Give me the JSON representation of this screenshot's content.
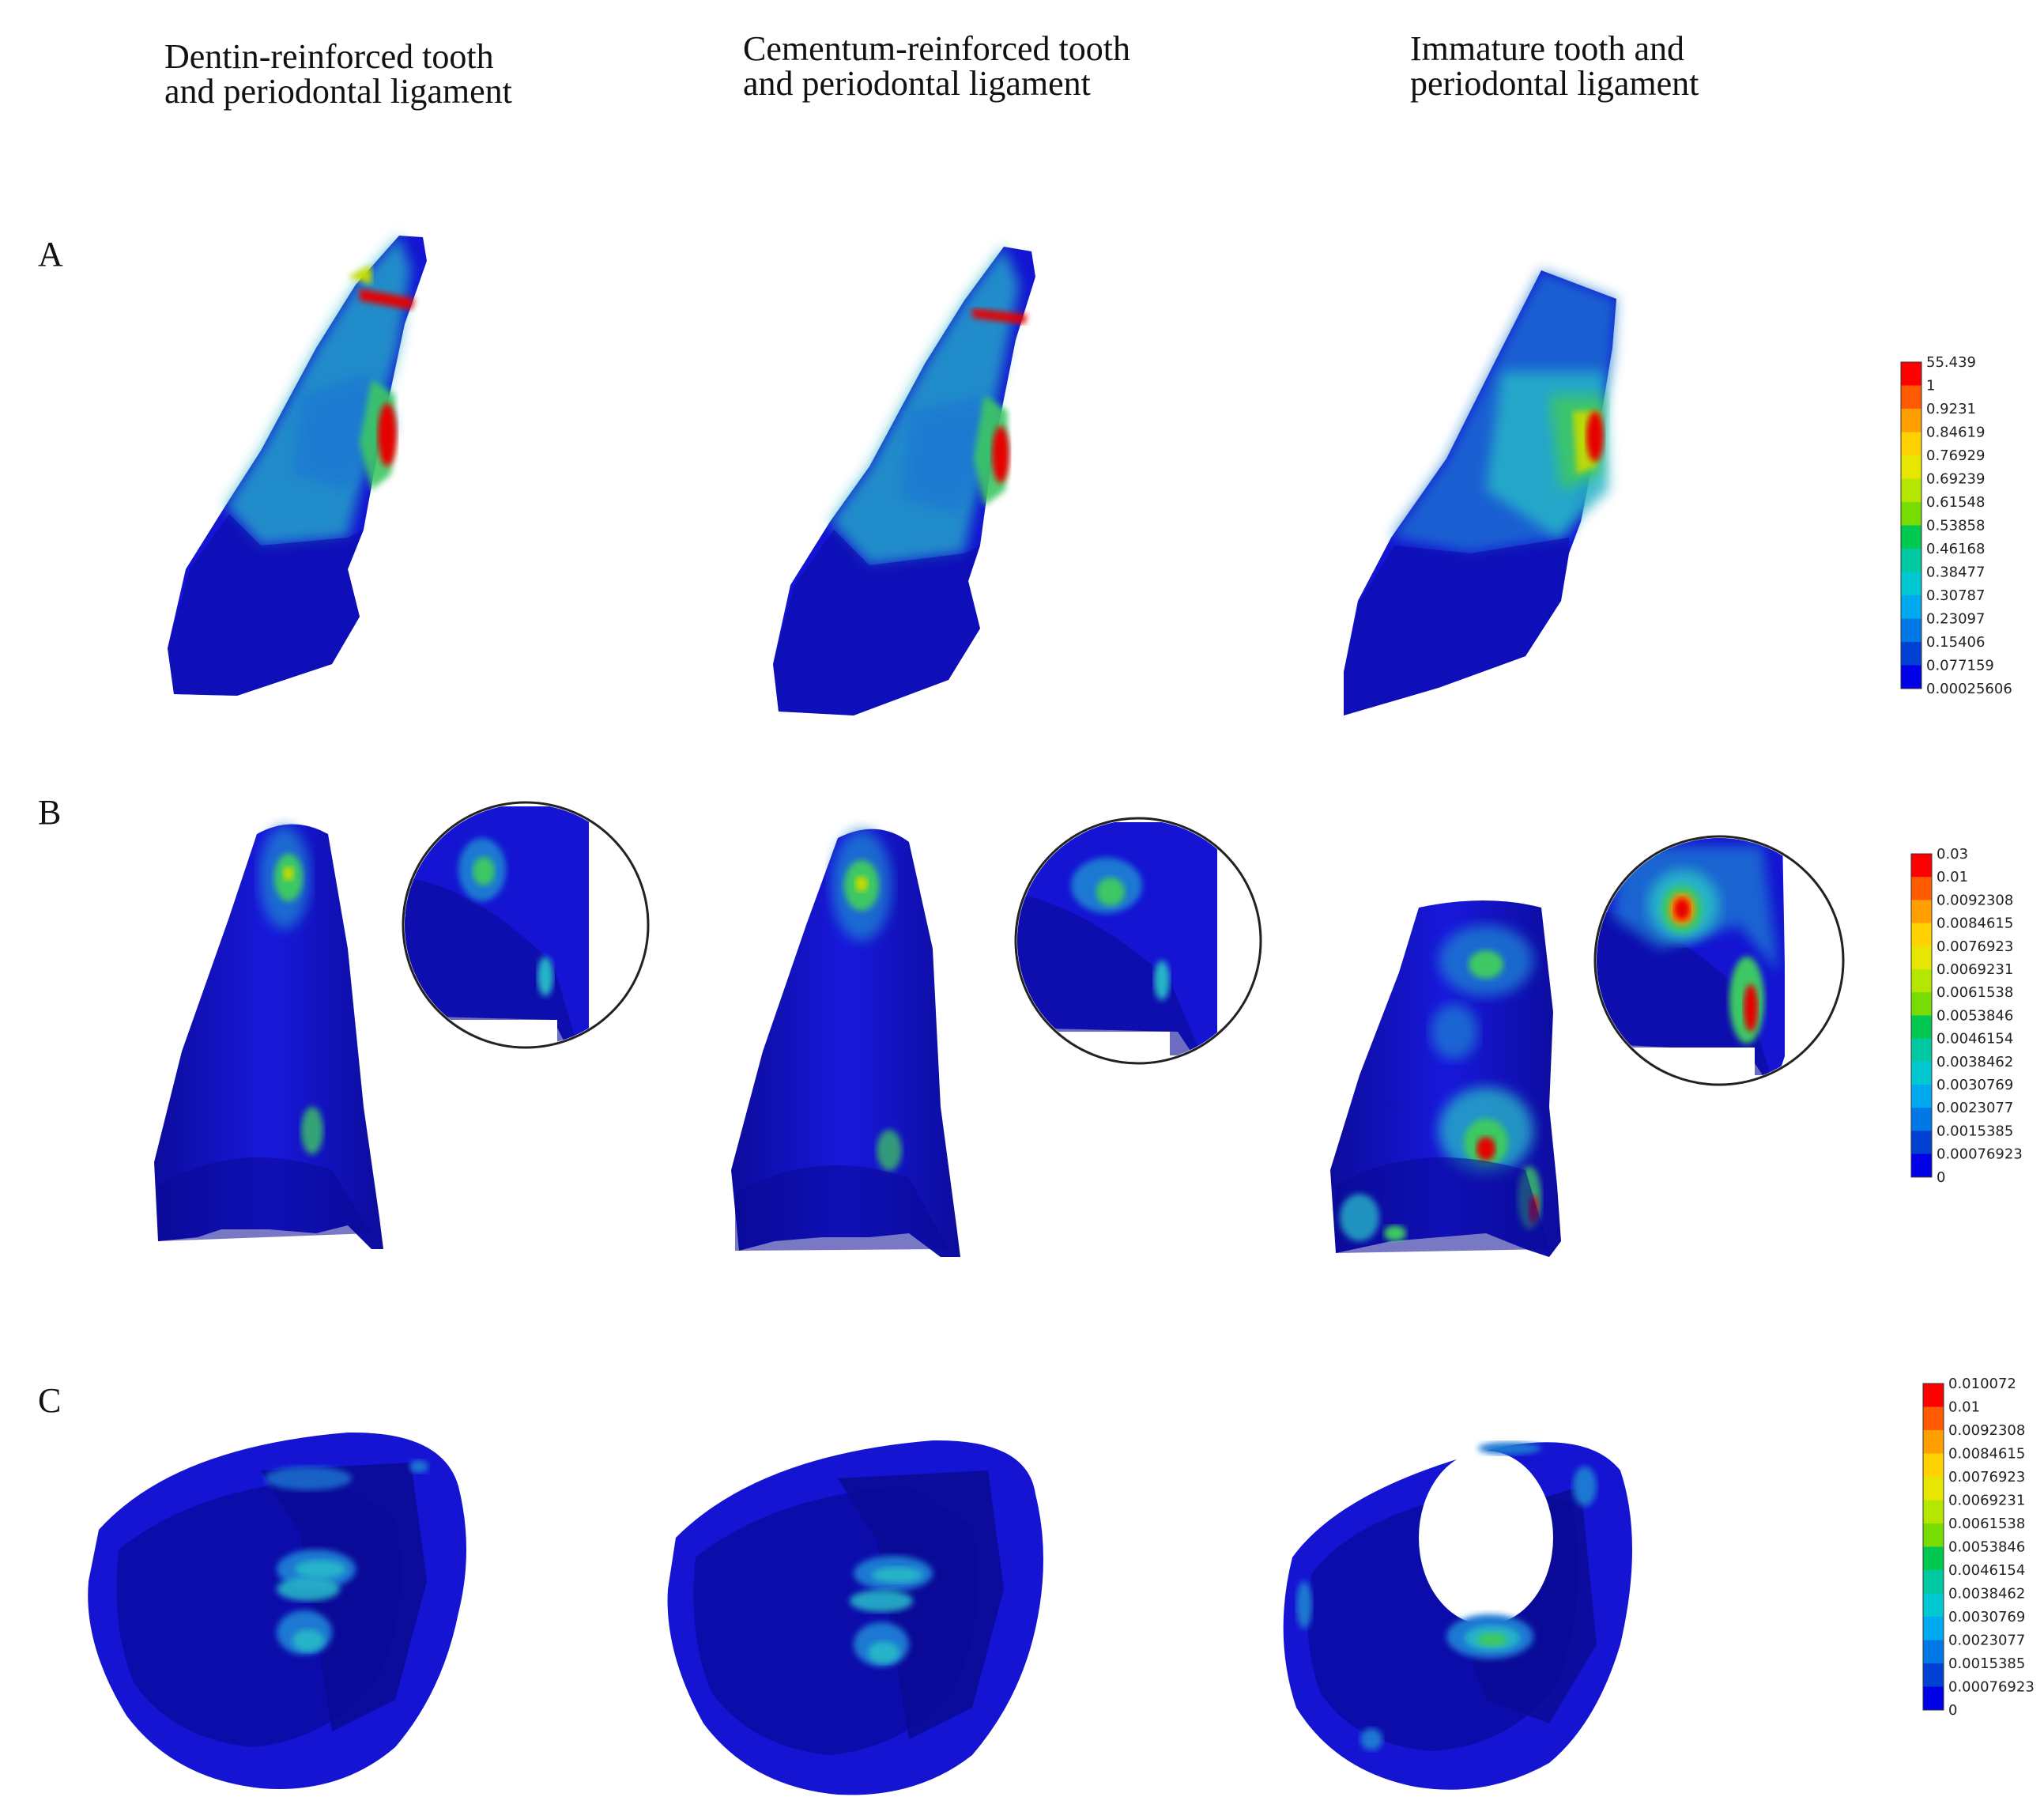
{
  "columns": [
    {
      "line1": "Dentin-reinforced tooth",
      "line2": "and periodontal ligament"
    },
    {
      "line1": "Cementum-reinforced tooth",
      "line2": "and periodontal ligament"
    },
    {
      "line1": "Immature tooth and",
      "line2": "periodontal ligament"
    }
  ],
  "rows": [
    {
      "label": "A"
    },
    {
      "label": "B"
    },
    {
      "label": "C"
    }
  ],
  "legends": [
    {
      "labels": [
        "55.439",
        "1",
        "0.9231",
        "0.84619",
        "0.76929",
        "0.69239",
        "0.61548",
        "0.53858",
        "0.46168",
        "0.38477",
        "0.30787",
        "0.23097",
        "0.15406",
        "0.077159",
        "0.00025606"
      ]
    },
    {
      "labels": [
        "0.03",
        "0.01",
        "0.0092308",
        "0.0084615",
        "0.0076923",
        "0.0069231",
        "0.0061538",
        "0.0053846",
        "0.0046154",
        "0.0038462",
        "0.0030769",
        "0.0023077",
        "0.0015385",
        "0.00076923",
        "0"
      ]
    },
    {
      "labels": [
        "0.010072",
        "0.01",
        "0.0092308",
        "0.0084615",
        "0.0076923",
        "0.0069231",
        "0.0061538",
        "0.0053846",
        "0.0046154",
        "0.0038462",
        "0.0030769",
        "0.0023077",
        "0.0015385",
        "0.00076923",
        "0"
      ]
    }
  ],
  "legend_colors": [
    "#ff0000",
    "#ff5a00",
    "#ffa000",
    "#ffd200",
    "#e6e600",
    "#b4e600",
    "#78dc00",
    "#28d200",
    "#00c850",
    "#00c8a0",
    "#00c8d2",
    "#00aaf0",
    "#0078e6",
    "#0040d2",
    "#0000e6"
  ],
  "stress_colors": {
    "base": "#1414d2",
    "dark": "#0a0a96",
    "light_blue": "#1e78d2",
    "cyan": "#28b4c8",
    "green": "#3cc864",
    "yellow": "#c8dc00",
    "orange": "#ff8c00",
    "red": "#e60000"
  }
}
